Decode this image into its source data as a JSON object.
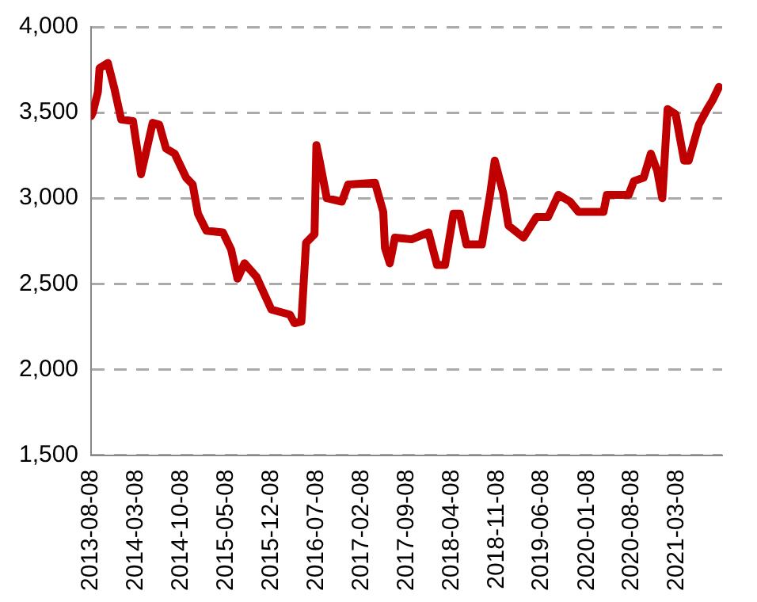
{
  "chart_data": {
    "type": "line",
    "x": [
      "2013-08-08",
      "2013-08-16",
      "2013-09-09",
      "2013-09-17",
      "2013-10-26",
      "2013-11-26",
      "2013-12-28",
      "2014-02-22",
      "2014-04-01",
      "2014-05-26",
      "2014-06-26",
      "2014-07-28",
      "2014-09-07",
      "2014-10-31",
      "2014-12-01",
      "2014-12-26",
      "2015-02-04",
      "2015-04-23",
      "2015-06-01",
      "2015-07-01",
      "2015-08-03",
      "2015-09-29",
      "2015-12-08",
      "2016-03-05",
      "2016-03-26",
      "2016-04-28",
      "2016-05-20",
      "2016-06-29",
      "2016-07-08",
      "2016-07-23",
      "2016-08-26",
      "2016-11-05",
      "2016-12-05",
      "2017-04-11",
      "2017-05-20",
      "2017-05-28",
      "2017-06-20",
      "2017-07-14",
      "2017-10-01",
      "2017-12-20",
      "2018-01-29",
      "2018-03-08",
      "2018-04-17",
      "2018-05-17",
      "2018-06-17",
      "2018-08-29",
      "2018-10-08",
      "2018-10-29",
      "2018-12-08",
      "2019-01-02",
      "2019-03-14",
      "2019-05-14",
      "2019-07-08",
      "2019-08-26",
      "2019-10-20",
      "2019-11-29",
      "2020-03-26",
      "2020-04-11",
      "2020-07-23",
      "2020-08-17",
      "2020-10-02",
      "2020-11-05",
      "2020-12-05",
      "2020-12-29",
      "2021-01-23",
      "2021-03-02",
      "2021-04-11",
      "2021-05-03",
      "2021-06-20",
      "2021-07-29",
      "2021-08-23",
      "2021-09-23"
    ],
    "series": [
      {
        "color": "#c00000",
        "values": [
          3480,
          3500,
          3620,
          3760,
          3790,
          3640,
          3460,
          3450,
          3140,
          3440,
          3430,
          3290,
          3260,
          3120,
          3080,
          2910,
          2810,
          2800,
          2700,
          2530,
          2620,
          2540,
          2350,
          2320,
          2270,
          2280,
          2740,
          2790,
          3310,
          3220,
          3000,
          2980,
          3080,
          3090,
          2920,
          2710,
          2620,
          2770,
          2760,
          2800,
          2610,
          2610,
          2910,
          2910,
          2730,
          2730,
          3030,
          3220,
          3030,
          2840,
          2770,
          2890,
          2890,
          3020,
          2980,
          2920,
          2920,
          3020,
          3020,
          3100,
          3120,
          3260,
          3160,
          3000,
          3520,
          3490,
          3220,
          3220,
          3430,
          3520,
          3570,
          3650
        ]
      }
    ],
    "xlim": [
      "2013-08-08",
      "2021-10-08"
    ],
    "xticks": [
      "2013-08-08",
      "2014-03-08",
      "2014-10-08",
      "2015-05-08",
      "2015-12-08",
      "2016-07-08",
      "2017-02-08",
      "2017-09-08",
      "2018-04-08",
      "2018-11-08",
      "2019-06-08",
      "2020-01-08",
      "2020-08-08",
      "2021-03-08"
    ],
    "ylim": [
      1500,
      4000
    ],
    "yticks": [
      {
        "value": 1500,
        "label": "1,500"
      },
      {
        "value": 2000,
        "label": "2,000"
      },
      {
        "value": 2500,
        "label": "2,500"
      },
      {
        "value": 3000,
        "label": "3,000"
      },
      {
        "value": 3500,
        "label": "3,500"
      },
      {
        "value": 4000,
        "label": "4,000"
      }
    ],
    "grid": "y",
    "legend": false,
    "marker": "none",
    "line_style": "solid"
  }
}
